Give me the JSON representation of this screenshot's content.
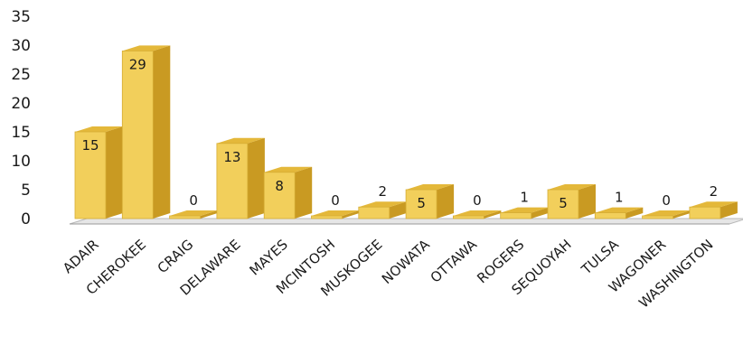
{
  "chart_data": {
    "type": "bar",
    "title": "",
    "xlabel": "",
    "ylabel": "",
    "ylim": [
      0,
      35
    ],
    "yticks": [
      0,
      5,
      10,
      15,
      20,
      25,
      30,
      35
    ],
    "grid": false,
    "legend": "none",
    "categories": [
      "ADAIR",
      "CHEROKEE",
      "CRAIG",
      "DELAWARE",
      "MAYES",
      "MCINTOSH",
      "MUSKOGEE",
      "NOWATA",
      "OTTAWA",
      "ROGERS",
      "SEQUOYAH",
      "TULSA",
      "WAGONER",
      "WASHINGTON"
    ],
    "values": [
      15,
      29,
      0,
      13,
      8,
      0,
      2,
      5,
      0,
      1,
      5,
      1,
      0,
      2
    ],
    "data_labels": [
      "15",
      "29",
      "0",
      "13",
      "8",
      "0",
      "2",
      "5",
      "0",
      "1",
      "5",
      "1",
      "0",
      "2"
    ],
    "colors": {
      "bar_front": "#f2cf5b",
      "bar_side": "#c99a22",
      "bar_top": "#e4b83a",
      "floor": "#dcdcdc"
    }
  }
}
